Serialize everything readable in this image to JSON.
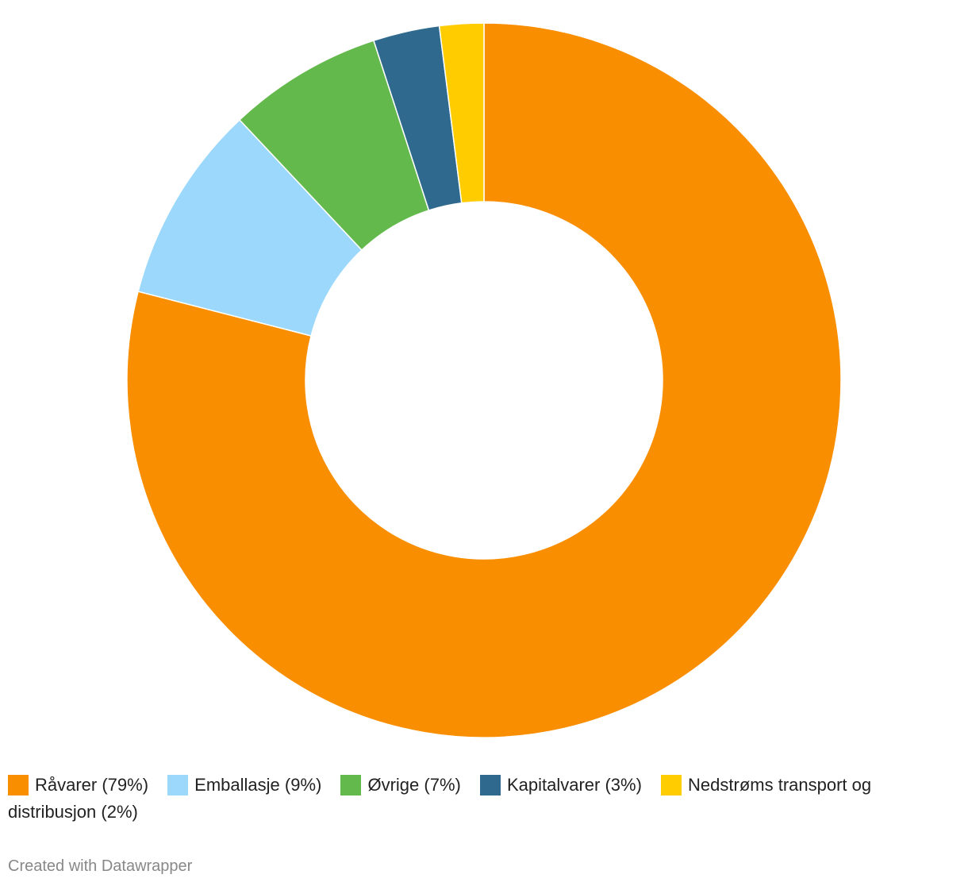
{
  "chart_data": {
    "type": "donut",
    "categories": [
      "Råvarer (79%)",
      "Emballasje (9%)",
      "Øvrige (7%)",
      "Kapitalvarer (3%)",
      "Nedstrøms transport og distribusjon (2%)"
    ],
    "values": [
      79,
      9,
      7,
      3,
      2
    ],
    "colors": [
      "#f98e00",
      "#9bd8fb",
      "#63b94b",
      "#2f6a8e",
      "#ffcc00"
    ],
    "credit": "Created with Datawrapper"
  }
}
